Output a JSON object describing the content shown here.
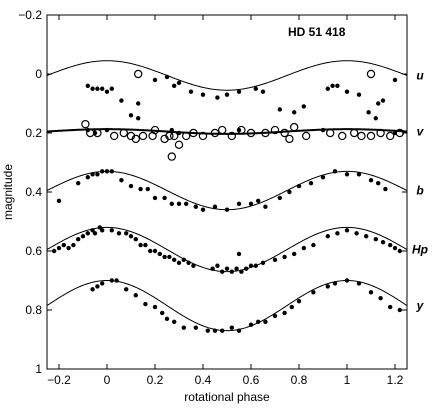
{
  "chart_data": {
    "type": "scatter",
    "title": "HD 51 418",
    "xlabel": "rotational phase",
    "ylabel": "magnitude",
    "xlim": [
      -0.25,
      1.25
    ],
    "ylim": [
      1,
      -0.2
    ],
    "y_inverted": true,
    "x_ticks": [
      -0.2,
      0,
      0.2,
      0.4,
      0.6,
      0.8,
      1,
      1.2
    ],
    "x_tick_labels": [
      "−0.2",
      "0",
      "0.2",
      "0.4",
      "0.6",
      "0.8",
      "1",
      "1.2"
    ],
    "y_ticks": [
      -0.2,
      0,
      0.2,
      0.4,
      0.6,
      0.8,
      1
    ],
    "y_tick_labels": [
      "−0.2",
      "0",
      "0.2",
      "0.4",
      "0.6",
      "0.8",
      "1"
    ],
    "grid": false,
    "series": [
      {
        "name": "u",
        "marker": "filled",
        "fit": {
          "offset": 0.005,
          "amp": 0.05
        },
        "points": [
          [
            -0.08,
            0.04
          ],
          [
            -0.06,
            0.05
          ],
          [
            -0.04,
            0.05
          ],
          [
            -0.02,
            0.05
          ],
          [
            0.0,
            0.06
          ],
          [
            0.02,
            0.05
          ],
          [
            0.06,
            0.09
          ],
          [
            0.1,
            0.14
          ],
          [
            0.13,
            0.1
          ],
          [
            0.2,
            0.02
          ],
          [
            0.25,
            0.01
          ],
          [
            0.28,
            0.04
          ],
          [
            0.3,
            0.03
          ],
          [
            0.35,
            0.06
          ],
          [
            0.4,
            0.07
          ],
          [
            0.46,
            0.08
          ],
          [
            0.5,
            0.07
          ],
          [
            0.55,
            0.06
          ],
          [
            0.62,
            0.05
          ],
          [
            0.65,
            0.06
          ],
          [
            0.72,
            0.12
          ],
          [
            0.78,
            0.13
          ],
          [
            0.82,
            0.11
          ],
          [
            0.92,
            0.05
          ],
          [
            0.94,
            0.04
          ],
          [
            0.96,
            0.04
          ],
          [
            1.0,
            0.06
          ],
          [
            1.05,
            0.07
          ],
          [
            1.09,
            0.13
          ],
          [
            1.13,
            0.1
          ],
          [
            1.15,
            0.09
          ],
          [
            1.2,
            0.02
          ]
        ],
        "open_points": [
          [
            0.13,
            0.0
          ],
          [
            1.1,
            0.0
          ]
        ]
      },
      {
        "name": "v",
        "marker": "open",
        "fit": {
          "offset": 0.195,
          "amp": 0.008
        },
        "points": [
          [
            0.13,
            0.15
          ],
          [
            1.12,
            0.15
          ],
          [
            -0.08,
            0.19
          ],
          [
            -0.05,
            0.2
          ],
          [
            0.0,
            0.19
          ],
          [
            0.27,
            0.19
          ],
          [
            0.3,
            0.2
          ],
          [
            0.55,
            0.19
          ],
          [
            0.9,
            0.19
          ],
          [
            1.2,
            0.2
          ]
        ],
        "open_points": [
          [
            -0.09,
            0.17
          ],
          [
            -0.07,
            0.2
          ],
          [
            -0.04,
            0.2
          ],
          [
            0.03,
            0.21
          ],
          [
            0.07,
            0.2
          ],
          [
            0.1,
            0.21
          ],
          [
            0.12,
            0.22
          ],
          [
            0.15,
            0.21
          ],
          [
            0.19,
            0.21
          ],
          [
            0.2,
            0.19
          ],
          [
            0.24,
            0.22
          ],
          [
            0.26,
            0.21
          ],
          [
            0.28,
            0.21
          ],
          [
            0.3,
            0.24
          ],
          [
            0.27,
            0.28
          ],
          [
            0.33,
            0.21
          ],
          [
            0.36,
            0.2
          ],
          [
            0.4,
            0.21
          ],
          [
            0.45,
            0.2
          ],
          [
            0.48,
            0.19
          ],
          [
            0.52,
            0.21
          ],
          [
            0.56,
            0.19
          ],
          [
            0.6,
            0.2
          ],
          [
            0.66,
            0.2
          ],
          [
            0.7,
            0.19
          ],
          [
            0.74,
            0.2
          ],
          [
            0.76,
            0.22
          ],
          [
            0.78,
            0.18
          ],
          [
            0.83,
            0.21
          ],
          [
            0.93,
            0.2
          ],
          [
            0.98,
            0.21
          ],
          [
            1.03,
            0.2
          ],
          [
            1.06,
            0.21
          ],
          [
            1.1,
            0.21
          ],
          [
            1.14,
            0.2
          ],
          [
            1.18,
            0.21
          ],
          [
            1.22,
            0.2
          ]
        ]
      },
      {
        "name": "b",
        "marker": "filled",
        "fit": {
          "offset": 0.395,
          "amp": 0.065
        },
        "points": [
          [
            -0.2,
            0.43
          ],
          [
            -0.12,
            0.37
          ],
          [
            -0.08,
            0.35
          ],
          [
            -0.06,
            0.34
          ],
          [
            -0.04,
            0.34
          ],
          [
            -0.02,
            0.33
          ],
          [
            0.0,
            0.33
          ],
          [
            0.02,
            0.33
          ],
          [
            0.06,
            0.36
          ],
          [
            0.1,
            0.38
          ],
          [
            0.14,
            0.39
          ],
          [
            0.17,
            0.39
          ],
          [
            0.2,
            0.42
          ],
          [
            0.24,
            0.42
          ],
          [
            0.27,
            0.44
          ],
          [
            0.3,
            0.44
          ],
          [
            0.33,
            0.44
          ],
          [
            0.37,
            0.45
          ],
          [
            0.4,
            0.46
          ],
          [
            0.45,
            0.45
          ],
          [
            0.5,
            0.46
          ],
          [
            0.55,
            0.44
          ],
          [
            0.6,
            0.44
          ],
          [
            0.63,
            0.43
          ],
          [
            0.66,
            0.45
          ],
          [
            0.72,
            0.42
          ],
          [
            0.76,
            0.4
          ],
          [
            0.8,
            0.38
          ],
          [
            0.85,
            0.37
          ],
          [
            0.9,
            0.35
          ],
          [
            0.95,
            0.33
          ],
          [
            1.0,
            0.34
          ],
          [
            1.05,
            0.34
          ],
          [
            1.1,
            0.36
          ],
          [
            1.13,
            0.37
          ],
          [
            1.16,
            0.39
          ]
        ]
      },
      {
        "name": "Hp",
        "marker": "filled",
        "fit": {
          "offset": 0.595,
          "amp": 0.075
        },
        "points": [
          [
            -0.22,
            0.6
          ],
          [
            -0.2,
            0.59
          ],
          [
            -0.18,
            0.58
          ],
          [
            -0.16,
            0.59
          ],
          [
            -0.14,
            0.58
          ],
          [
            -0.12,
            0.56
          ],
          [
            -0.1,
            0.55
          ],
          [
            -0.08,
            0.54
          ],
          [
            -0.06,
            0.53
          ],
          [
            -0.05,
            0.54
          ],
          [
            -0.03,
            0.52
          ],
          [
            -0.02,
            0.53
          ],
          [
            0.02,
            0.53
          ],
          [
            0.05,
            0.54
          ],
          [
            0.08,
            0.54
          ],
          [
            0.1,
            0.55
          ],
          [
            0.12,
            0.56
          ],
          [
            0.14,
            0.58
          ],
          [
            0.16,
            0.58
          ],
          [
            0.18,
            0.6
          ],
          [
            0.2,
            0.6
          ],
          [
            0.22,
            0.61
          ],
          [
            0.24,
            0.62
          ],
          [
            0.26,
            0.62
          ],
          [
            0.28,
            0.63
          ],
          [
            0.3,
            0.64
          ],
          [
            0.32,
            0.63
          ],
          [
            0.34,
            0.64
          ],
          [
            0.36,
            0.65
          ],
          [
            0.44,
            0.66
          ],
          [
            0.46,
            0.65
          ],
          [
            0.48,
            0.67
          ],
          [
            0.5,
            0.66
          ],
          [
            0.52,
            0.67
          ],
          [
            0.54,
            0.66
          ],
          [
            0.55,
            0.61
          ],
          [
            0.56,
            0.67
          ],
          [
            0.58,
            0.66
          ],
          [
            0.6,
            0.65
          ],
          [
            0.62,
            0.65
          ],
          [
            0.65,
            0.64
          ],
          [
            0.7,
            0.63
          ],
          [
            0.74,
            0.62
          ],
          [
            0.78,
            0.61
          ],
          [
            0.82,
            0.59
          ],
          [
            0.86,
            0.58
          ],
          [
            0.92,
            0.55
          ],
          [
            0.96,
            0.54
          ],
          [
            1.0,
            0.53
          ],
          [
            1.04,
            0.54
          ],
          [
            1.08,
            0.55
          ],
          [
            1.12,
            0.56
          ],
          [
            1.15,
            0.57
          ],
          [
            1.18,
            0.58
          ],
          [
            1.2,
            0.59
          ],
          [
            1.22,
            0.6
          ]
        ]
      },
      {
        "name": "y",
        "marker": "filled",
        "fit": {
          "offset": 0.785,
          "amp": 0.085
        },
        "points": [
          [
            -0.06,
            0.73
          ],
          [
            -0.04,
            0.72
          ],
          [
            -0.02,
            0.71
          ],
          [
            0.02,
            0.7
          ],
          [
            0.04,
            0.7
          ],
          [
            0.08,
            0.73
          ],
          [
            0.12,
            0.75
          ],
          [
            0.16,
            0.78
          ],
          [
            0.2,
            0.79
          ],
          [
            0.23,
            0.81
          ],
          [
            0.25,
            0.83
          ],
          [
            0.28,
            0.84
          ],
          [
            0.32,
            0.86
          ],
          [
            0.37,
            0.86
          ],
          [
            0.42,
            0.87
          ],
          [
            0.45,
            0.87
          ],
          [
            0.48,
            0.87
          ],
          [
            0.52,
            0.86
          ],
          [
            0.55,
            0.87
          ],
          [
            0.6,
            0.85
          ],
          [
            0.63,
            0.84
          ],
          [
            0.66,
            0.84
          ],
          [
            0.7,
            0.82
          ],
          [
            0.74,
            0.81
          ],
          [
            0.77,
            0.79
          ],
          [
            0.8,
            0.77
          ],
          [
            0.86,
            0.74
          ],
          [
            0.92,
            0.72
          ],
          [
            0.95,
            0.71
          ],
          [
            1.0,
            0.7
          ],
          [
            1.05,
            0.71
          ],
          [
            1.1,
            0.74
          ],
          [
            1.14,
            0.76
          ],
          [
            1.18,
            0.79
          ],
          [
            1.22,
            0.8
          ]
        ]
      }
    ]
  }
}
